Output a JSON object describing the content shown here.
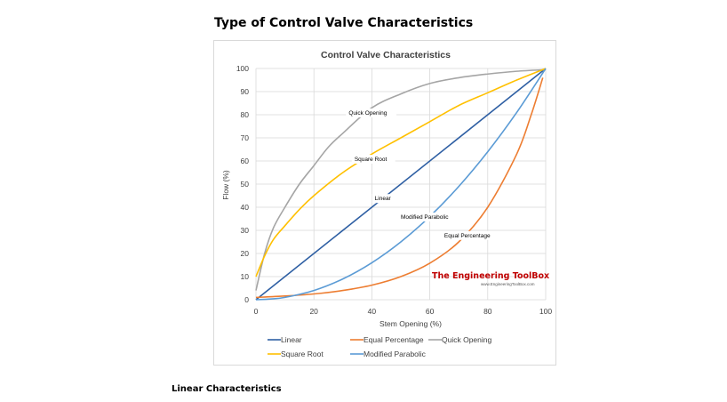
{
  "page": {
    "title": "Type of Control Valve Characteristics",
    "section_heading": "Linear Characteristics"
  },
  "watermark": {
    "name": "The Engineering ToolBox",
    "url": "www.EngineeringToolBox.com",
    "color": "#c00000"
  },
  "chart_data": {
    "type": "line",
    "title": "Control Valve Characteristics",
    "xlabel": "Stem Opening  (%)",
    "ylabel": "Flow (%)",
    "xlim": [
      0,
      100
    ],
    "ylim": [
      0,
      100
    ],
    "x_ticks": [
      0,
      20,
      40,
      60,
      80,
      100
    ],
    "y_ticks": [
      0,
      10,
      20,
      30,
      40,
      50,
      60,
      70,
      80,
      90,
      100
    ],
    "grid": true,
    "legend_position": "bottom",
    "series": [
      {
        "name": "Linear",
        "color": "#2e5fa3",
        "x": [
          0,
          100
        ],
        "y": [
          0,
          100
        ],
        "annotation": {
          "text": "Linear",
          "x": 41,
          "y": 43
        }
      },
      {
        "name": "Equal Percentage",
        "color": "#ed7d31",
        "x": [
          0,
          10,
          20,
          30,
          40,
          50,
          60,
          70,
          80,
          90,
          95,
          99
        ],
        "y": [
          1,
          1.6,
          2.5,
          4,
          6.3,
          10,
          15.8,
          25,
          40,
          63,
          80,
          96
        ],
        "annotation": {
          "text": "Equal Percentage",
          "x": 65,
          "y": 27
        }
      },
      {
        "name": "Quick Opening",
        "color": "#a5a5a5",
        "x": [
          0,
          3,
          6,
          10,
          15,
          20,
          25,
          30,
          40,
          50,
          60,
          70,
          80,
          90,
          100
        ],
        "y": [
          4,
          20,
          31,
          40,
          50,
          58,
          66,
          72,
          83,
          89,
          93.5,
          96,
          97.6,
          98.8,
          99.5
        ],
        "annotation": {
          "text": "Quick Opening",
          "x": 32,
          "y": 80
        }
      },
      {
        "name": "Square Root",
        "color": "#ffc000",
        "x": [
          0,
          3,
          6,
          10,
          15,
          20,
          30,
          40,
          50,
          60,
          70,
          80,
          90,
          100
        ],
        "y": [
          10,
          19,
          26,
          32,
          39,
          45,
          55,
          63,
          70,
          77,
          84,
          89.5,
          95,
          100
        ],
        "annotation": {
          "text": "Square Root",
          "x": 34,
          "y": 60
        }
      },
      {
        "name": "Modified Parabolic",
        "color": "#5b9bd5",
        "x": [
          0,
          5,
          10,
          20,
          30,
          40,
          50,
          60,
          70,
          80,
          90,
          100
        ],
        "y": [
          0,
          0.3,
          1,
          4,
          9,
          16,
          25,
          36,
          49,
          64,
          81,
          100
        ],
        "annotation": {
          "text": "Modified Parabolic",
          "x": 50,
          "y": 35
        }
      }
    ]
  }
}
